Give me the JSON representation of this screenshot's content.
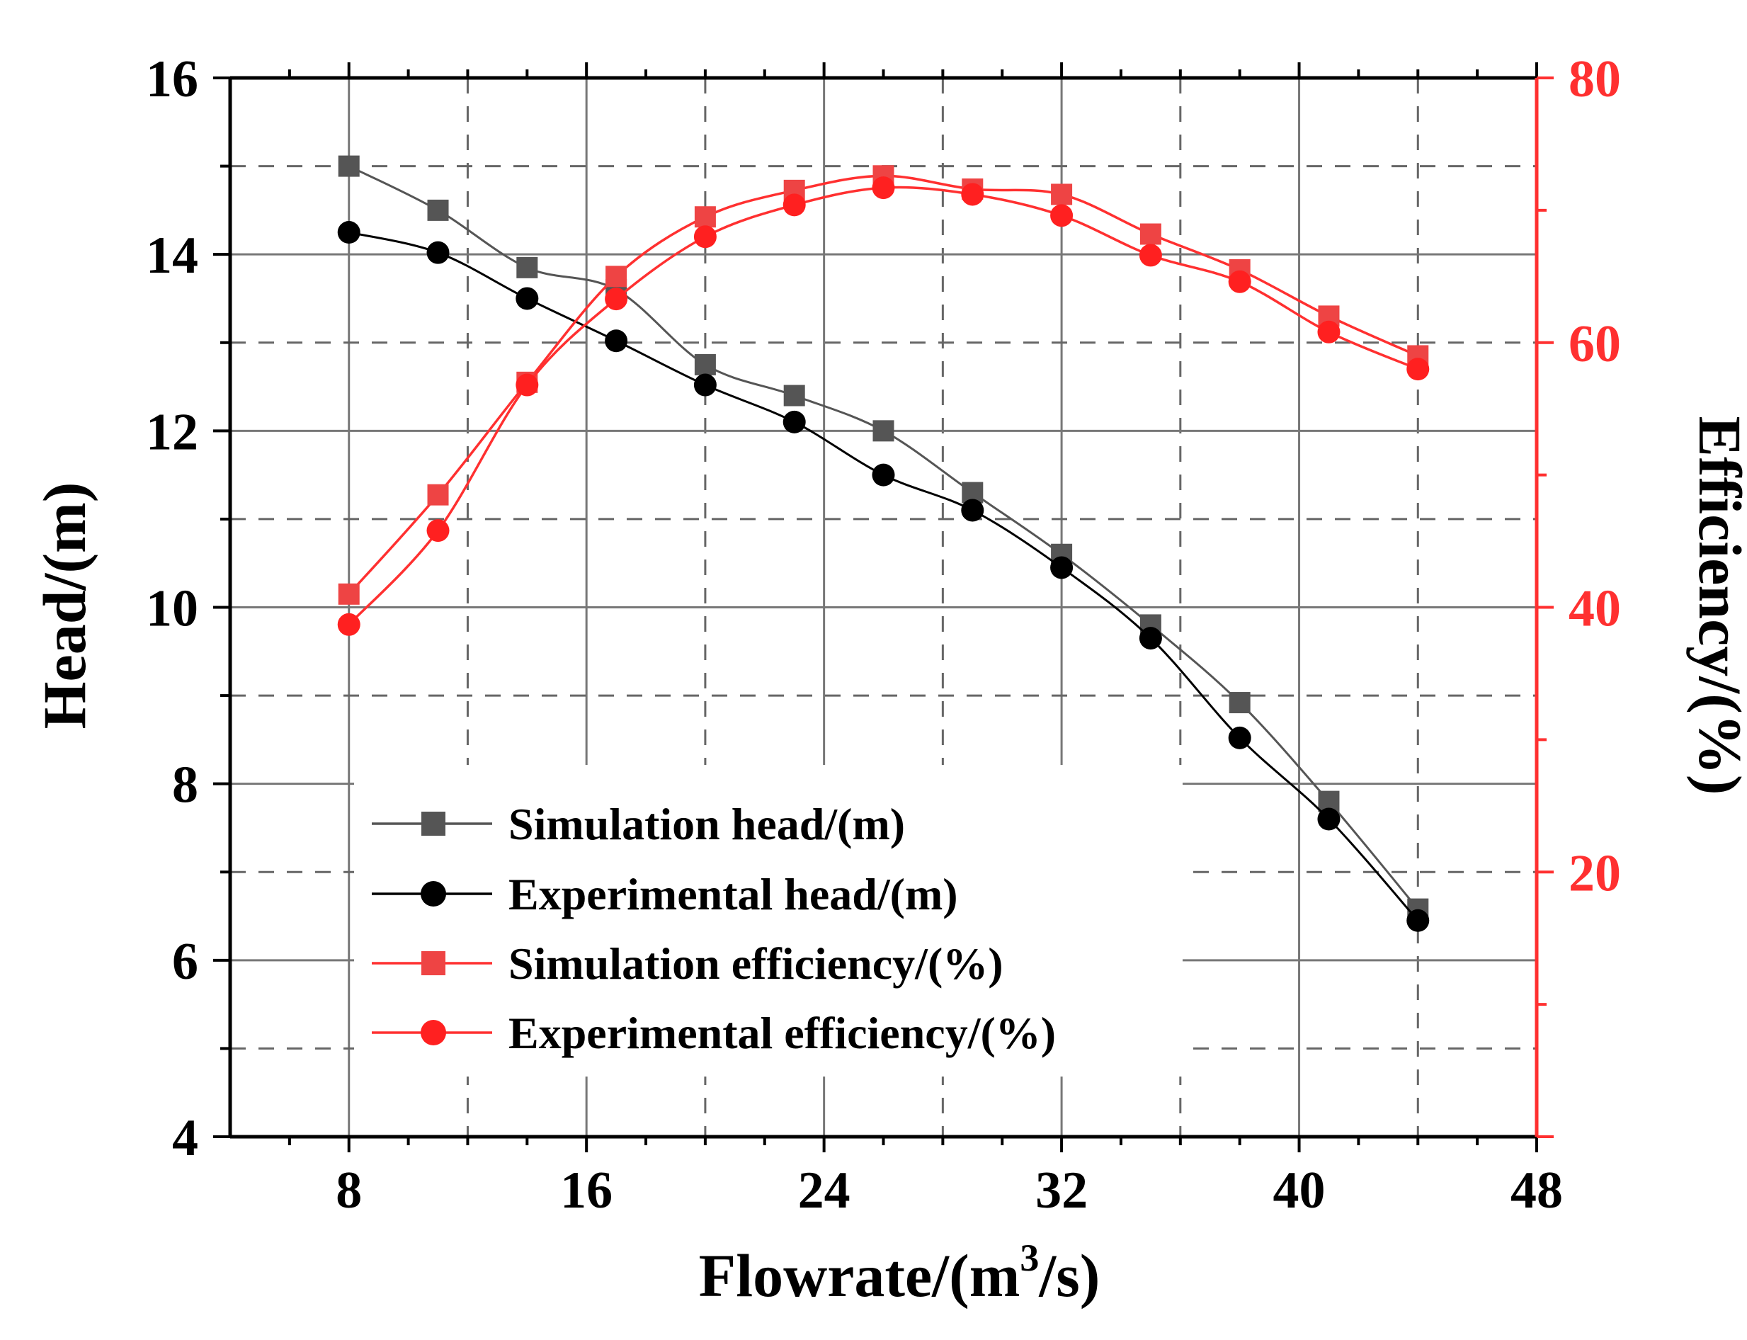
{
  "chart_data": {
    "type": "line",
    "x": [
      8,
      11,
      14,
      17,
      20,
      23,
      26,
      29,
      32,
      35,
      38,
      41,
      44
    ],
    "xlabel": "Flowrate/(m",
    "xlabel_sup": "3",
    "xlabel_tail": "/s)",
    "ylabel_left": "Head/(m)",
    "ylabel_right": "Efficiency/(%)",
    "xlim": [
      4,
      48
    ],
    "ylim_left": [
      4,
      16
    ],
    "ylim_right": [
      0,
      80
    ],
    "x_ticks": [
      "8",
      "16",
      "24",
      "32",
      "40",
      "48"
    ],
    "y_left_ticks": [
      "4",
      "6",
      "8",
      "10",
      "12",
      "14",
      "16"
    ],
    "y_right_ticks": [
      "20",
      "40",
      "60",
      "80"
    ],
    "grid": true,
    "legend_position": "lower-left",
    "colors": {
      "head_sim": "#555555",
      "head_exp": "#000000",
      "eff": "#ff3030",
      "eff_marker": "#ff2020",
      "eff_sim_marker": "#ee4444"
    },
    "series": [
      {
        "name": "Simulation head/(m)",
        "axis": "left",
        "marker": "square",
        "color": "#555555",
        "values": [
          15.0,
          14.5,
          13.85,
          13.6,
          12.75,
          12.4,
          12.0,
          11.3,
          10.6,
          9.8,
          8.92,
          7.8,
          6.58
        ]
      },
      {
        "name": "Experimental head/(m)",
        "axis": "left",
        "marker": "circle",
        "color": "#000000",
        "values": [
          14.25,
          14.02,
          13.5,
          13.02,
          12.52,
          12.1,
          11.5,
          11.1,
          10.45,
          9.65,
          8.52,
          7.6,
          6.45
        ]
      },
      {
        "name": "Simulation efficiency/(%)",
        "axis": "right",
        "marker": "square",
        "color": "#ee4444",
        "values": [
          41.0,
          48.5,
          57.0,
          65.0,
          69.5,
          71.5,
          72.6,
          71.6,
          71.2,
          68.2,
          65.5,
          62.0,
          59.0
        ]
      },
      {
        "name": "Experimental efficiency/(%)",
        "axis": "right",
        "marker": "circle",
        "color": "#ff2020",
        "values": [
          38.7,
          45.8,
          56.8,
          63.3,
          68.0,
          70.4,
          71.7,
          71.2,
          69.6,
          66.6,
          64.6,
          60.8,
          58.0
        ]
      }
    ]
  }
}
